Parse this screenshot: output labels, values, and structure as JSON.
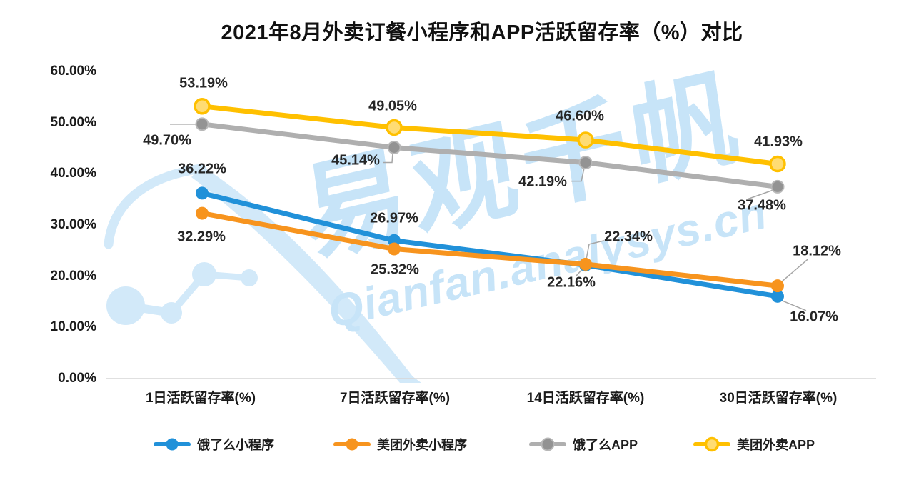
{
  "title": "2021年8月外卖订餐小程序和APP活跃留存率（%）对比",
  "watermark": {
    "brand_text": "易观千帆",
    "url_text": "Qianfan.analysys.cn",
    "text_color": "#C7E4F8",
    "logo_color": "#D2E9F9"
  },
  "axis": {
    "y_ticks": [
      "0.00%",
      "10.00%",
      "20.00%",
      "30.00%",
      "40.00%",
      "50.00%",
      "60.00%"
    ],
    "baseline_color": "#D6D6D6",
    "leader_line_color": "#A6A6A6"
  },
  "chart_data": {
    "type": "line",
    "title": "2021年8月外卖订餐小程序和APP活跃留存率（%）对比",
    "categories": [
      "1日活跃留存率(%)",
      "7日活跃留存率(%)",
      "14日活跃留存率(%)",
      "30日活跃留存率(%)"
    ],
    "series": [
      {
        "name": "饿了么小程序",
        "color": "#2191D9",
        "marker_fill": "#2191D9",
        "marker_stroke": "#2191D9",
        "values": [
          36.22,
          26.97,
          22.16,
          16.07
        ]
      },
      {
        "name": "美团外卖小程序",
        "color": "#F7941E",
        "marker_fill": "#F7941E",
        "marker_stroke": "#F7941E",
        "values": [
          32.29,
          25.32,
          22.34,
          18.12
        ]
      },
      {
        "name": "饿了么APP",
        "color": "#AFAFAF",
        "marker_fill": "#939393",
        "marker_stroke": "#B8B8B8",
        "values": [
          49.7,
          45.14,
          42.19,
          37.48
        ]
      },
      {
        "name": "美团外卖APP",
        "color": "#FFC000",
        "marker_fill": "#FFDC73",
        "marker_stroke": "#FFC000",
        "values": [
          53.19,
          49.05,
          46.6,
          41.93
        ]
      }
    ],
    "ylim": [
      0,
      60
    ],
    "xlabel": "",
    "ylabel": "",
    "grid": "off",
    "legend_position": "bottom",
    "data_labels": "each point labeled with value, two decimals + %"
  }
}
